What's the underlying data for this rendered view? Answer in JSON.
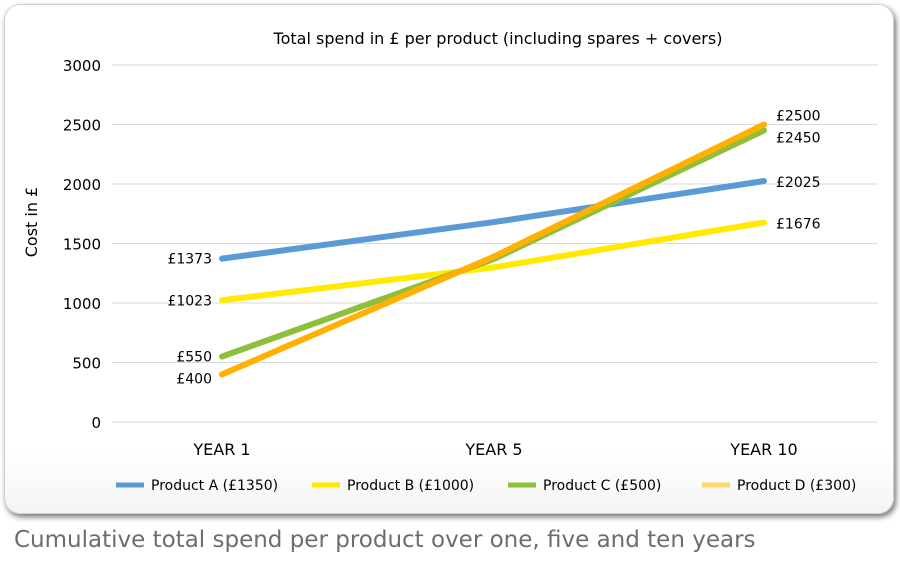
{
  "caption": "Cumulative total spend per product over one, five and ten years",
  "chart_data": {
    "type": "line",
    "title": "Total spend in £ per product (including spares + covers)",
    "xlabel": "",
    "ylabel": "Cost in £",
    "categories": [
      "YEAR 1",
      "YEAR 5",
      "YEAR 10"
    ],
    "ylim": [
      0,
      3000
    ],
    "yticks": [
      0,
      500,
      1000,
      1500,
      2000,
      2500,
      3000
    ],
    "grid": true,
    "legend_position": "bottom",
    "series": [
      {
        "name": "Product A (£1350)",
        "color": "#5b9bd5",
        "values": [
          1373,
          1680,
          2025
        ],
        "labels": [
          "£1373",
          "",
          "£2025"
        ]
      },
      {
        "name": "Product B (£1000)",
        "color": "#ffea00",
        "values": [
          1023,
          1300,
          1676
        ],
        "labels": [
          "£1023",
          "",
          "£1676"
        ]
      },
      {
        "name": "Product C (£500)",
        "color": "#8dbf3a",
        "values": [
          550,
          1370,
          2450
        ],
        "labels": [
          "£550",
          "",
          "£2450"
        ]
      },
      {
        "name": "Product D (£300)",
        "color": "#ffb000",
        "values": [
          400,
          1390,
          2500
        ],
        "labels": [
          "£400",
          "",
          "£2500"
        ]
      }
    ],
    "legend_colors": [
      "#5b9bd5",
      "#ffea00",
      "#8dbf3a",
      "#ffd966"
    ]
  }
}
